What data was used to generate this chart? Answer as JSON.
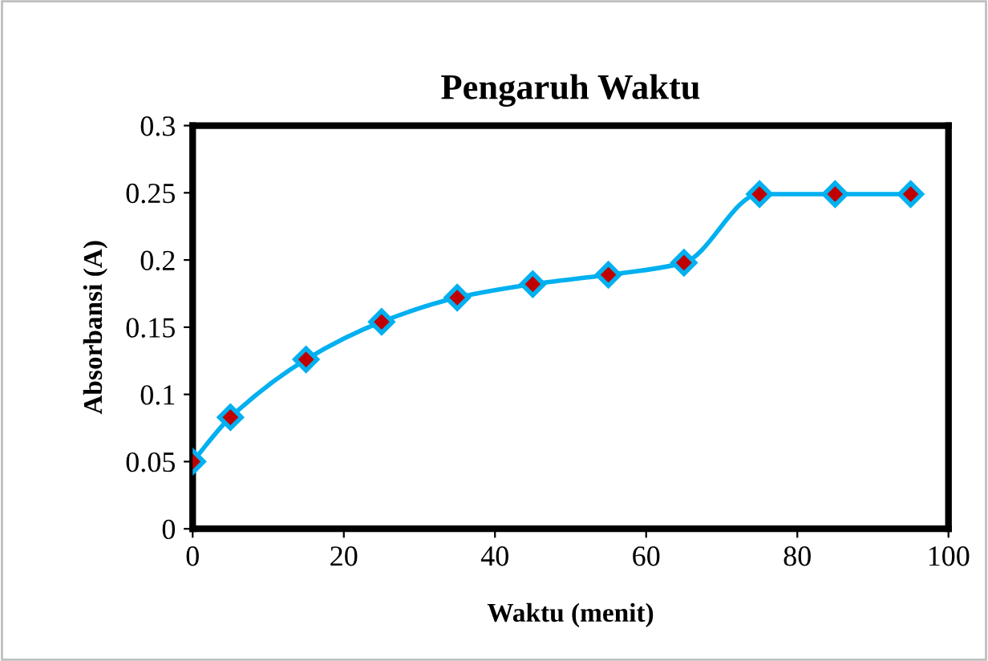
{
  "chart_data": {
    "type": "line",
    "title": "Pengaruh Waktu",
    "xlabel": "Waktu (menit)",
    "ylabel": "Absorbansi (A)",
    "x": [
      0,
      5,
      15,
      25,
      35,
      45,
      55,
      65,
      75,
      85,
      95
    ],
    "series": [
      {
        "color": "#00b0f0",
        "colors": [
          "#c00000",
          "#c00000",
          "#c00000",
          "#c00000",
          "#c00000",
          "#c00000",
          "#c00000",
          "#c00000",
          "#c00000",
          "#c00000",
          "#c00000"
        ],
        "values": [
          0.05,
          0.083,
          0.126,
          0.154,
          0.172,
          0.182,
          0.189,
          0.198,
          0.249,
          0.249,
          0.249
        ]
      }
    ],
    "xlim": [
      0,
      100
    ],
    "xticks": [
      0,
      20,
      40,
      60,
      80,
      100
    ],
    "ylim": [
      0,
      0.3
    ],
    "yticks": [
      0,
      0.05,
      0.1,
      0.15,
      0.2,
      0.25,
      0.3
    ],
    "marker": "diamond",
    "line_style": "solid",
    "grid": false,
    "legend": false
  }
}
